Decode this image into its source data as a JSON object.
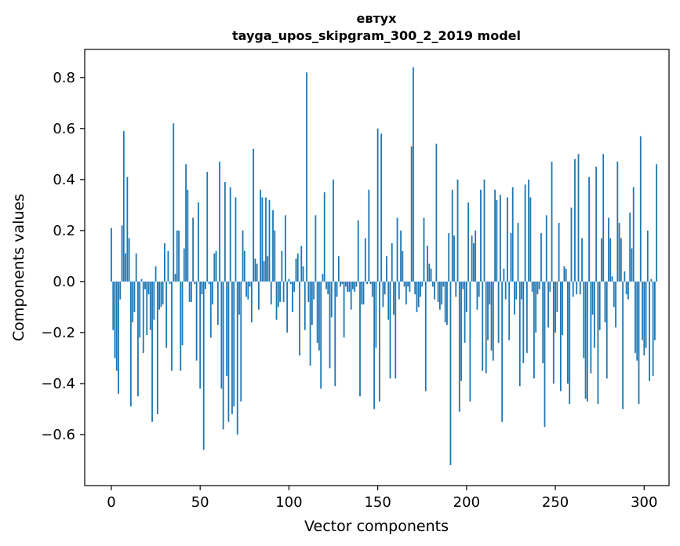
{
  "chart_data": {
    "type": "bar",
    "title": "евтух",
    "subtitle": "tayga_upos_skipgram_300_2_2019 model",
    "xlabel": "Vector components",
    "ylabel": "Components values",
    "xlim": [
      -15,
      314
    ],
    "ylim": [
      -0.8,
      0.91
    ],
    "xticks": [
      0,
      50,
      100,
      150,
      200,
      250,
      300
    ],
    "xtick_labels": [
      "0",
      "50",
      "100",
      "150",
      "200",
      "250",
      "300"
    ],
    "yticks": [
      -0.6,
      -0.4,
      -0.2,
      0.0,
      0.2,
      0.4,
      0.6,
      0.8
    ],
    "ytick_labels": [
      "−0.6",
      "−0.4",
      "−0.2",
      "0.0",
      "0.2",
      "0.4",
      "0.6",
      "0.8"
    ],
    "bar_color": "#1f77b4",
    "grid": false,
    "values": [
      0.21,
      -0.19,
      -0.3,
      -0.35,
      -0.44,
      -0.07,
      0.22,
      0.59,
      0.11,
      0.41,
      0.17,
      -0.49,
      -0.16,
      -0.12,
      0.11,
      -0.45,
      -0.22,
      0.01,
      -0.28,
      -0.03,
      -0.21,
      -0.05,
      -0.19,
      -0.55,
      -0.15,
      0.06,
      -0.52,
      -0.11,
      -0.1,
      -0.09,
      0.15,
      -0.26,
      0.12,
      -0.01,
      -0.35,
      0.62,
      0.03,
      0.2,
      0.2,
      -0.35,
      -0.25,
      0.13,
      0.46,
      0.36,
      -0.08,
      -0.08,
      0.25,
      -0.01,
      -0.31,
      0.31,
      -0.42,
      -0.05,
      -0.66,
      -0.03,
      0.43,
      -0.01,
      -0.22,
      -0.09,
      0.11,
      0.12,
      -0.17,
      0.47,
      -0.42,
      -0.58,
      0.39,
      -0.37,
      -0.55,
      0.37,
      -0.52,
      -0.49,
      0.33,
      -0.6,
      -0.13,
      -0.47,
      0.2,
      0.12,
      -0.06,
      -0.07,
      -0.02,
      -0.16,
      0.52,
      0.09,
      0.07,
      -0.11,
      0.36,
      0.33,
      0.08,
      0.33,
      0.1,
      0.32,
      -0.09,
      0.28,
      0.2,
      -0.15,
      -0.1,
      -0.08,
      0.12,
      -0.08,
      0.26,
      -0.2,
      0.01,
      -0.01,
      -0.12,
      -0.04,
      0.09,
      0.11,
      -0.29,
      0.14,
      0.06,
      -0.19,
      0.82,
      -0.08,
      -0.33,
      -0.17,
      -0.07,
      0.26,
      -0.24,
      -0.27,
      -0.42,
      0.03,
      0.35,
      -0.03,
      -0.05,
      -0.34,
      -0.14,
      0.4,
      -0.41,
      -0.06,
      0.1,
      -0.02,
      -0.01,
      -0.22,
      -0.02,
      -0.04,
      -0.04,
      -0.11,
      -0.03,
      -0.04,
      -0.02,
      0.24,
      -0.45,
      -0.09,
      -0.09,
      0.17,
      -0.01,
      0.36,
      -0.01,
      -0.06,
      -0.5,
      -0.26,
      0.6,
      -0.47,
      0.58,
      -0.1,
      -0.05,
      0.1,
      -0.15,
      -0.38,
      0.15,
      -0.13,
      -0.38,
      0.25,
      -0.07,
      0.2,
      0.12,
      -0.02,
      -0.09,
      -0.02,
      -0.04,
      0.53,
      0.84,
      -0.05,
      -0.12,
      -0.1,
      -0.06,
      -0.02,
      0.25,
      -0.43,
      0.14,
      0.07,
      0.05,
      -0.02,
      -0.07,
      0.54,
      -0.08,
      -0.11,
      -0.09,
      -0.02,
      -0.16,
      -0.17,
      0.19,
      -0.72,
      0.36,
      0.18,
      -0.06,
      0.4,
      -0.51,
      -0.39,
      -0.03,
      -0.24,
      -0.12,
      0.31,
      -0.47,
      0.18,
      0.15,
      0.2,
      -0.11,
      -0.06,
      0.36,
      -0.35,
      0.4,
      -0.36,
      -0.23,
      -0.09,
      -0.27,
      -0.31,
      0.36,
      0.32,
      -0.24,
      0.34,
      -0.55,
      0.05,
      -0.07,
      0.33,
      -0.23,
      0.19,
      0.37,
      -0.13,
      -0.07,
      0.23,
      -0.41,
      -0.07,
      -0.32,
      0.38,
      -0.28,
      0.4,
      0.33,
      -0.04,
      -0.38,
      -0.2,
      -0.05,
      -0.03,
      0.19,
      -0.32,
      -0.57,
      0.26,
      -0.18,
      -0.04,
      0.47,
      -0.4,
      -0.2,
      -0.12,
      0.23,
      -0.43,
      -0.21,
      0.06,
      0.05,
      -0.4,
      -0.48,
      0.29,
      -0.06,
      0.48,
      -0.05,
      0.5,
      -0.05,
      0.17,
      -0.3,
      -0.46,
      -0.47,
      0.41,
      -0.36,
      -0.13,
      -0.26,
      0.45,
      -0.48,
      -0.19,
      0.17,
      0.5,
      -0.16,
      -0.38,
      0.25,
      0.17,
      0.02,
      -0.1,
      -0.18,
      0.47,
      0.23,
      0.17,
      -0.5,
      0.04,
      -0.05,
      -0.07,
      0.27,
      0.13,
      0.37,
      -0.28,
      -0.31,
      -0.48,
      0.57,
      -0.23,
      -0.29,
      -0.26,
      0.2,
      -0.39,
      0.01,
      -0.37,
      -0.23,
      0.46
    ]
  }
}
